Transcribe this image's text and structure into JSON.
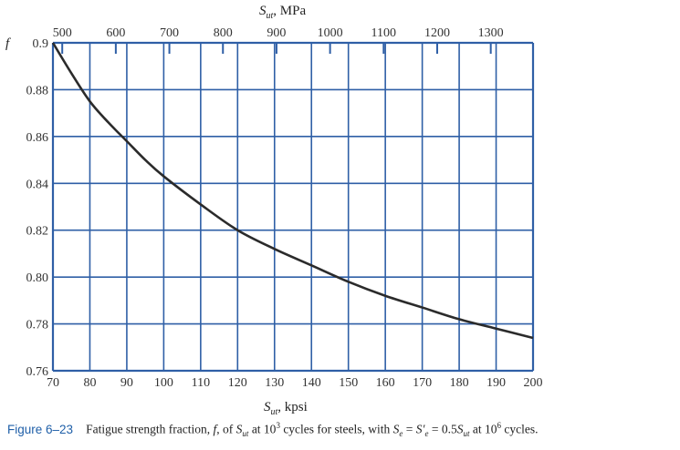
{
  "chart_data": {
    "type": "line",
    "title": "",
    "ylabel": "f",
    "xlabel": "S_ut, kpsi",
    "xlabel_top": "S_ut, MPa",
    "xlim": [
      70,
      200
    ],
    "ylim": [
      0.76,
      0.9
    ],
    "x_ticks": [
      70,
      80,
      90,
      100,
      110,
      120,
      130,
      140,
      150,
      160,
      170,
      180,
      190,
      200
    ],
    "x_tick_labels": [
      "70",
      "80",
      "90",
      "100",
      "110",
      "120",
      "130",
      "140",
      "150",
      "160",
      "170",
      "180",
      "190",
      "200"
    ],
    "y_ticks": [
      0.76,
      0.78,
      0.8,
      0.82,
      0.84,
      0.86,
      0.88,
      0.9
    ],
    "y_tick_labels": [
      "0.76",
      "0.78",
      "0.80",
      "0.82",
      "0.84",
      "0.86",
      "0.88",
      "0.9"
    ],
    "top_ticks_mpa": [
      500,
      600,
      700,
      800,
      900,
      1000,
      1100,
      1200,
      1300
    ],
    "top_tick_labels": [
      "500",
      "600",
      "700",
      "800",
      "900",
      "1000",
      "1100",
      "1200",
      "1300"
    ],
    "grid": true,
    "series": [
      {
        "x": [
          70,
          75,
          80,
          85,
          90,
          95,
          100,
          110,
          120,
          130,
          140,
          150,
          160,
          170,
          180,
          190,
          200
        ],
        "values": [
          0.9,
          0.887,
          0.875,
          0.866,
          0.858,
          0.85,
          0.843,
          0.831,
          0.82,
          0.812,
          0.805,
          0.798,
          0.792,
          0.787,
          0.782,
          0.778,
          0.774
        ]
      }
    ]
  },
  "labels": {
    "ylabel_text": "f",
    "top_axis_S": "S",
    "top_axis_sub": "ut",
    "top_axis_unit": ", MPa",
    "bottom_axis_S": "S",
    "bottom_axis_sub": "ut",
    "bottom_axis_unit": ", kpsi"
  },
  "caption": {
    "figure_label": "Figure 6–23",
    "text_1": "Fatigue strength fraction, ",
    "f": "f",
    "text_2": ", of ",
    "S1": "S",
    "S1_sub": "ut",
    "text_3": " at 10",
    "exp1": "3",
    "text_4": " cycles for steels, with ",
    "S2": "S",
    "S2_sub": "e",
    "text_5": " = ",
    "S3": "S′",
    "S3_sub": "e",
    "text_6": " = 0.5",
    "S4": "S",
    "S4_sub": "ut",
    "text_7": " at 10",
    "exp2": "6",
    "text_8": " cycles."
  },
  "colors": {
    "grid": "#2f5fa6",
    "curve": "#2b2b2b",
    "figure_label": "#1f5fa8"
  }
}
